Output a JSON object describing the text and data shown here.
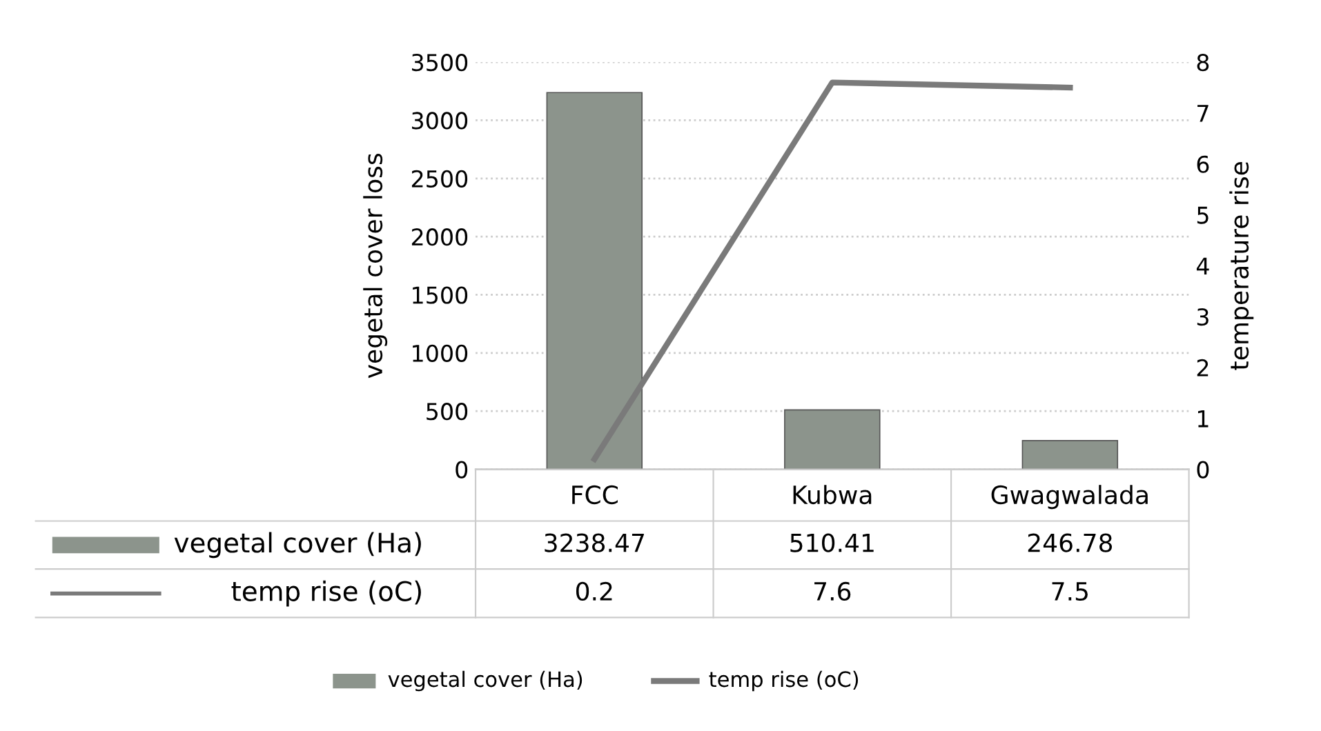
{
  "chart_data": {
    "type": "bar",
    "categories": [
      "FCC",
      "Kubwa",
      "Gwagwalada"
    ],
    "series": [
      {
        "name": "vegetal cover (Ha)",
        "color": "#8c948c",
        "values": [
          3238.47,
          510.41,
          246.78
        ]
      },
      {
        "name": "temp rise (oC)",
        "type": "line",
        "axis": "y2",
        "color": "#7a7a7a",
        "values": [
          0.2,
          7.6,
          7.5
        ]
      }
    ],
    "ylabel": "vegetal cover loss",
    "y2label": "temperature rise",
    "ylim": [
      0,
      3500
    ],
    "yticks": [
      0,
      500,
      1000,
      1500,
      2000,
      2500,
      3000,
      3500
    ],
    "y2lim": [
      0,
      8
    ],
    "y2ticks": [
      0,
      1,
      2,
      3,
      4,
      5,
      6,
      7,
      8
    ],
    "grid": "y",
    "legend": "bottom",
    "data_labels": true,
    "marker": "none",
    "line_style": "solid"
  }
}
